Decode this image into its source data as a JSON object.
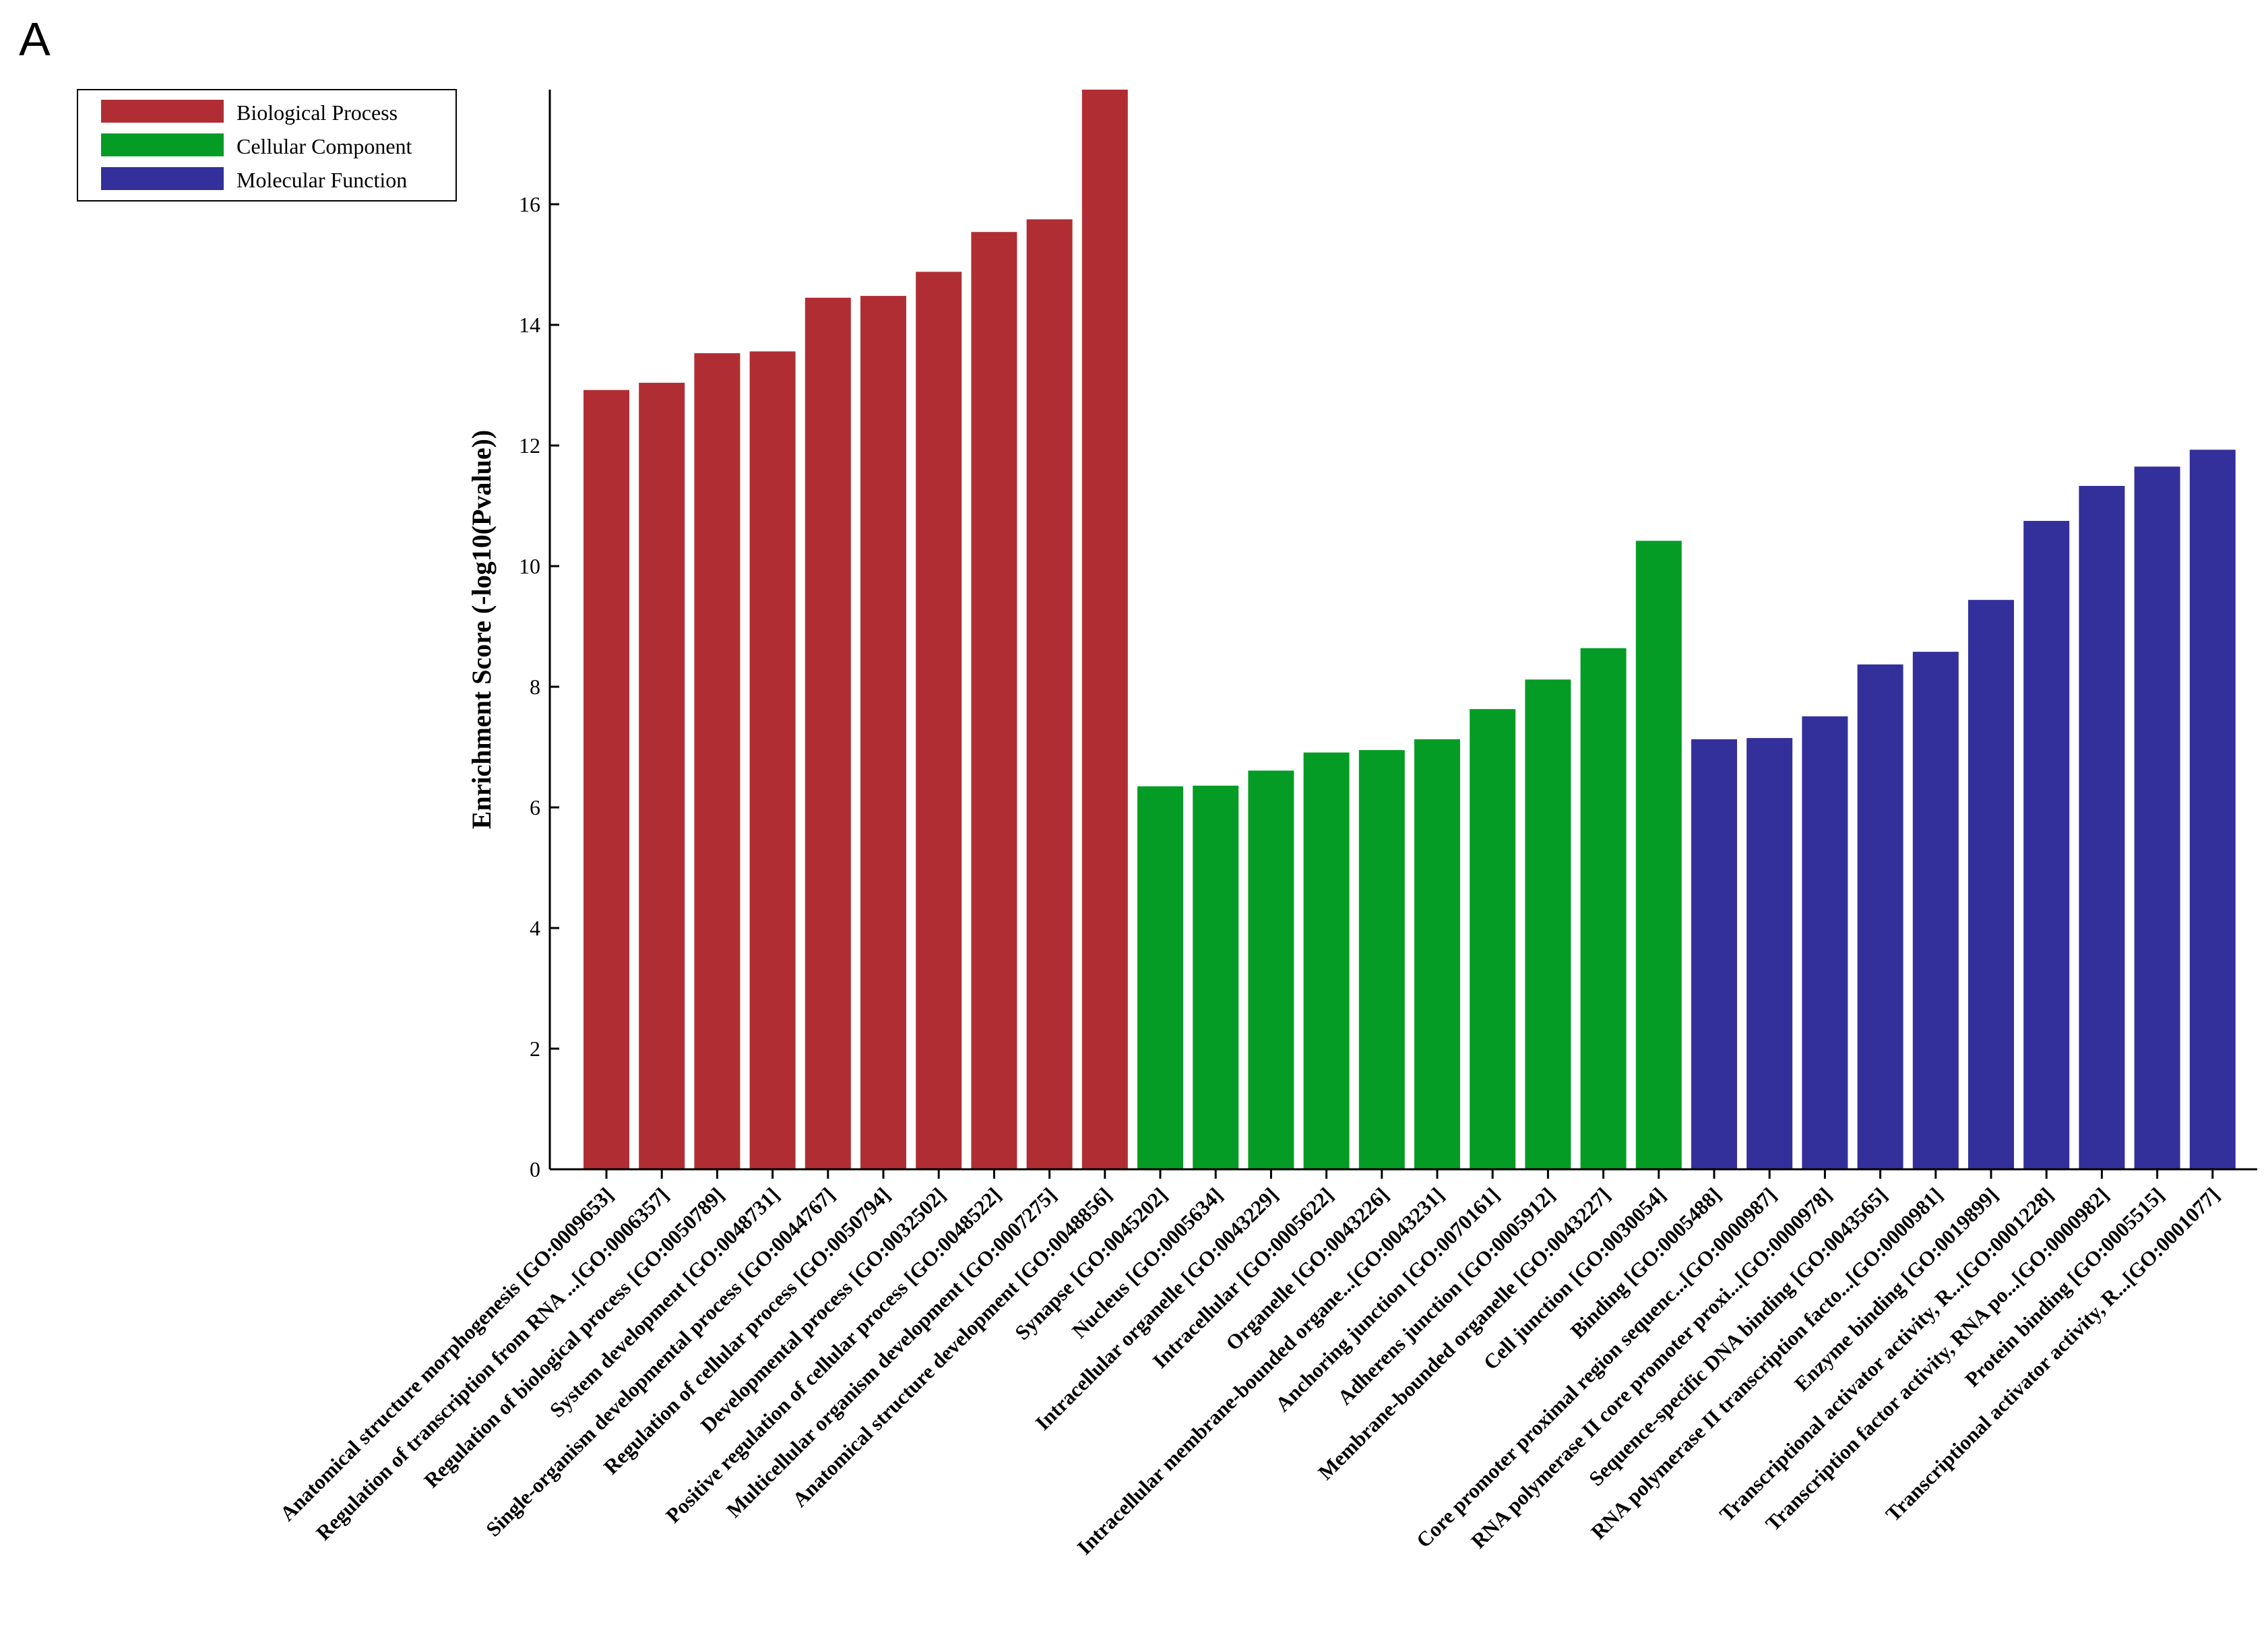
{
  "panel_label": "A",
  "chart_data": {
    "type": "bar",
    "title": "",
    "xlabel": "",
    "ylabel": "Enrichment Score (-log10(Pvalue))",
    "ylim": [
      0,
      17.9
    ],
    "yticks": [
      0,
      2,
      4,
      6,
      8,
      10,
      12,
      14,
      16
    ],
    "grid": false,
    "legend_position": "top-left",
    "groups": [
      {
        "name": "Biological Process",
        "color": "#b02e33"
      },
      {
        "name": "Cellular Component",
        "color": "#059c26"
      },
      {
        "name": "Molecular Function",
        "color": "#33309b"
      }
    ],
    "categories": [
      "Anatomical structure morphogenesis [GO:0009653]",
      "Regulation of transcription from RNA ...[GO:0006357]",
      "Regulation of biological process [GO:0050789]",
      "System development [GO:0048731]",
      "Single-organism developmental process [GO:0044767]",
      "Regulation of cellular process [GO:0050794]",
      "Developmental process [GO:0032502]",
      "Positive regulation of cellular process [GO:0048522]",
      "Multicellular organism development [GO:0007275]",
      "Anatomical structure development [GO:0048856]",
      "Synapse [GO:0045202]",
      "Nucleus [GO:0005634]",
      "Intracellular organelle [GO:0043229]",
      "Intracellular [GO:0005622]",
      "Organelle [GO:0043226]",
      "Intracellular membrane-bounded organe...[GO:0043231]",
      "Anchoring junction [GO:0070161]",
      "Adherens junction [GO:0005912]",
      "Membrane-bounded organelle [GO:0043227]",
      "Cell junction [GO:0030054]",
      "Binding [GO:0005488]",
      "Core promoter proximal region sequenc...[GO:0000987]",
      "RNA polymerase II core promoter proxi...[GO:0000978]",
      "Sequence-specific DNA binding [GO:0043565]",
      "RNA polymerase II transcription facto...[GO:0000981]",
      "Enzyme binding [GO:0019899]",
      "Transcriptional activator activity, R...[GO:0001228]",
      "Transcription factor activity, RNA po...[GO:0000982]",
      "Protein binding [GO:0005515]",
      "Transcriptional activator activity, R...[GO:0001077]"
    ],
    "values": [
      12.92,
      13.04,
      13.53,
      13.56,
      14.45,
      14.48,
      14.88,
      15.54,
      15.75,
      17.9,
      6.35,
      6.36,
      6.61,
      6.91,
      6.95,
      7.13,
      7.63,
      8.12,
      8.64,
      10.42,
      7.13,
      7.15,
      7.51,
      8.37,
      8.58,
      9.44,
      10.75,
      11.33,
      11.65,
      11.93
    ],
    "group_index": [
      0,
      0,
      0,
      0,
      0,
      0,
      0,
      0,
      0,
      0,
      1,
      1,
      1,
      1,
      1,
      1,
      1,
      1,
      1,
      1,
      2,
      2,
      2,
      2,
      2,
      2,
      2,
      2,
      2,
      2
    ]
  }
}
